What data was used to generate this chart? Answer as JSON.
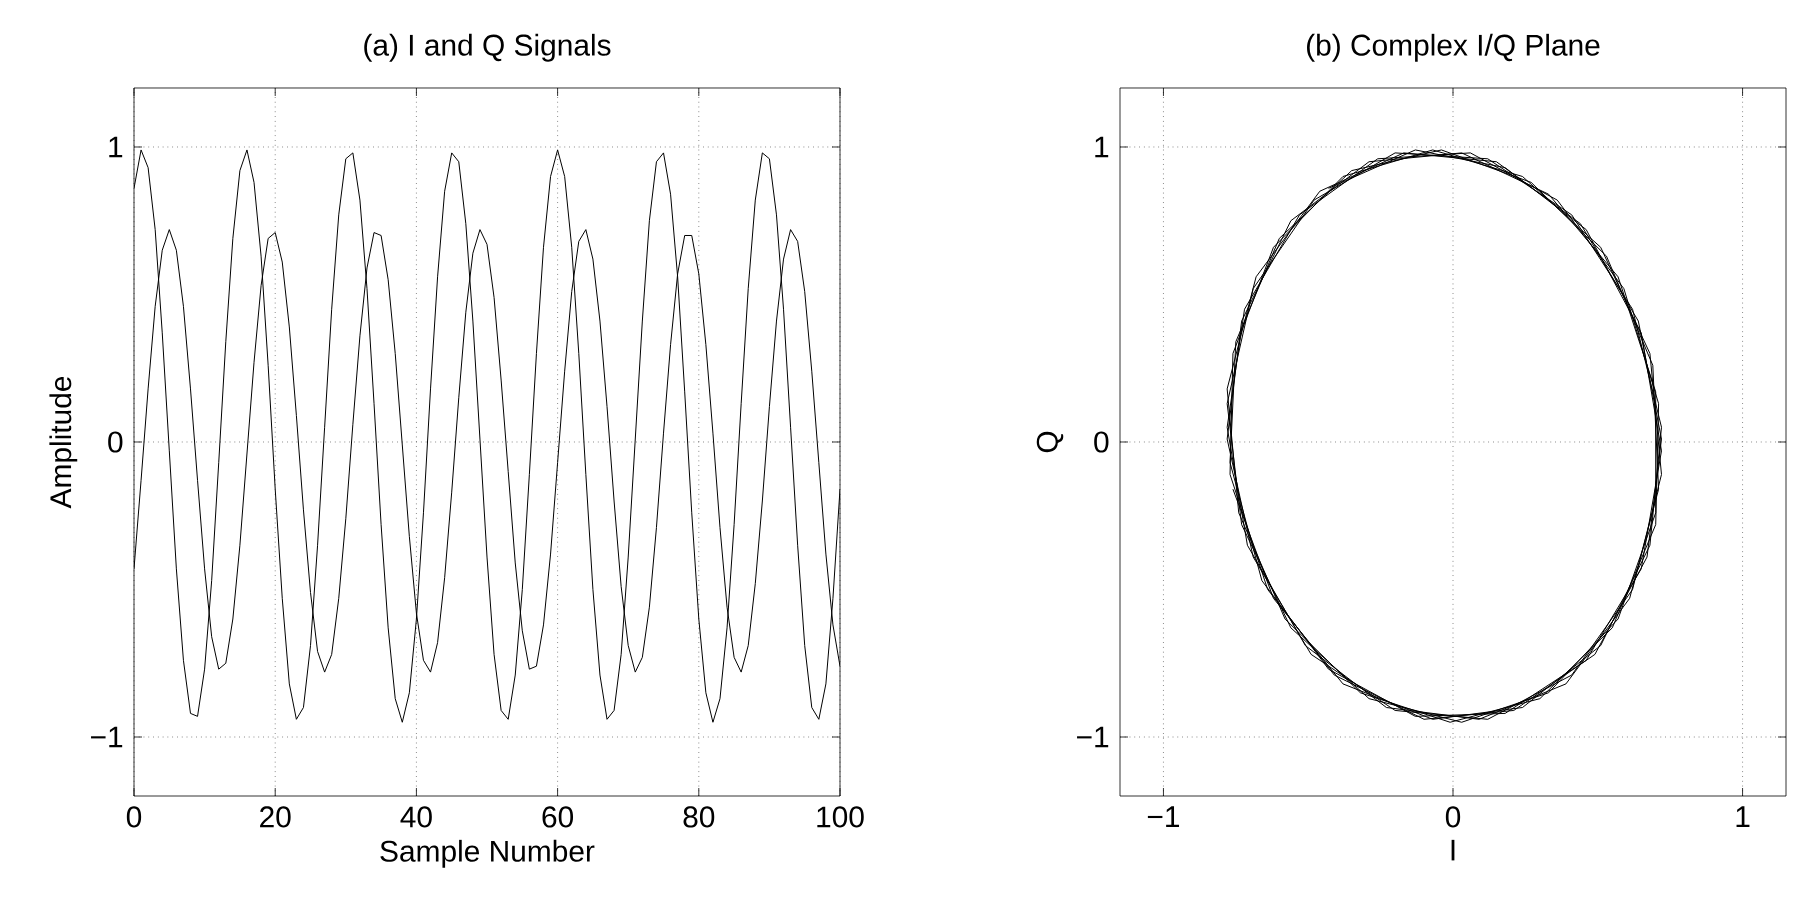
{
  "chart_data": [
    {
      "type": "line",
      "title": "(a) I and Q Signals",
      "xlabel": "Sample Number",
      "ylabel": "Amplitude",
      "x": [
        0,
        1,
        2,
        3,
        4,
        5,
        6,
        7,
        8,
        9,
        10,
        11,
        12,
        13,
        14,
        15,
        16,
        17,
        18,
        19,
        20,
        21,
        22,
        23,
        24,
        25,
        26,
        27,
        28,
        29,
        30,
        31,
        32,
        33,
        34,
        35,
        36,
        37,
        38,
        39,
        40,
        41,
        42,
        43,
        44,
        45,
        46,
        47,
        48,
        49,
        50,
        51,
        52,
        53,
        54,
        55,
        56,
        57,
        58,
        59,
        60,
        61,
        62,
        63,
        64,
        65,
        66,
        67,
        68,
        69,
        70,
        71,
        72,
        73,
        74,
        75,
        76,
        77,
        78,
        79,
        80,
        81,
        82,
        83,
        84,
        85,
        86,
        87,
        88,
        89,
        90,
        91,
        92,
        93,
        94,
        95,
        96,
        97,
        98,
        99,
        100
      ],
      "series": [
        {
          "color": "#000000",
          "values": [
            0.86,
            0.99,
            0.93,
            0.72,
            0.37,
            -0.03,
            -0.43,
            -0.74,
            -0.92,
            -0.93,
            -0.77,
            -0.47,
            -0.07,
            0.34,
            0.69,
            0.92,
            0.99,
            0.88,
            0.63,
            0.26,
            -0.16,
            -0.53,
            -0.82,
            -0.94,
            -0.9,
            -0.69,
            -0.35,
            0.05,
            0.45,
            0.77,
            0.96,
            0.98,
            0.82,
            0.52,
            0.13,
            -0.28,
            -0.63,
            -0.87,
            -0.95,
            -0.85,
            -0.6,
            -0.24,
            0.18,
            0.56,
            0.85,
            0.98,
            0.95,
            0.74,
            0.41,
            0.01,
            -0.39,
            -0.72,
            -0.91,
            -0.94,
            -0.79,
            -0.5,
            -0.11,
            0.3,
            0.66,
            0.9,
            0.99,
            0.9,
            0.66,
            0.3,
            -0.11,
            -0.5,
            -0.79,
            -0.94,
            -0.91,
            -0.72,
            -0.39,
            0.01,
            0.41,
            0.75,
            0.95,
            0.98,
            0.84,
            0.56,
            0.17,
            -0.24,
            -0.6,
            -0.85,
            -0.95,
            -0.87,
            -0.63,
            -0.28,
            0.13,
            0.52,
            0.82,
            0.98,
            0.96,
            0.77,
            0.45,
            0.05,
            -0.35,
            -0.69,
            -0.9,
            -0.94,
            -0.82,
            -0.53,
            -0.16
          ]
        },
        {
          "color": "#000000",
          "values": [
            -0.43,
            -0.13,
            0.18,
            0.46,
            0.65,
            0.72,
            0.65,
            0.46,
            0.18,
            -0.13,
            -0.43,
            -0.66,
            -0.77,
            -0.75,
            -0.6,
            -0.35,
            -0.04,
            0.27,
            0.53,
            0.69,
            0.71,
            0.61,
            0.39,
            0.09,
            -0.23,
            -0.51,
            -0.71,
            -0.78,
            -0.72,
            -0.53,
            -0.26,
            0.06,
            0.36,
            0.59,
            0.71,
            0.7,
            0.55,
            0.3,
            -0.01,
            -0.32,
            -0.58,
            -0.74,
            -0.78,
            -0.68,
            -0.46,
            -0.17,
            0.15,
            0.44,
            0.64,
            0.72,
            0.67,
            0.49,
            0.21,
            -0.1,
            -0.41,
            -0.64,
            -0.77,
            -0.76,
            -0.62,
            -0.38,
            -0.07,
            0.24,
            0.51,
            0.68,
            0.72,
            0.62,
            0.41,
            0.12,
            -0.2,
            -0.49,
            -0.69,
            -0.78,
            -0.73,
            -0.56,
            -0.29,
            0.03,
            0.33,
            0.57,
            0.7,
            0.7,
            0.57,
            0.33,
            0.03,
            -0.29,
            -0.56,
            -0.73,
            -0.78,
            -0.69,
            -0.48,
            -0.2,
            0.12,
            0.41,
            0.62,
            0.72,
            0.68,
            0.51,
            0.24,
            -0.07,
            -0.38,
            -0.62,
            -0.76
          ]
        }
      ],
      "xlim": [
        0,
        100
      ],
      "ylim": [
        -1.2,
        1.2
      ],
      "xticks": [
        0,
        20,
        40,
        60,
        80,
        100
      ],
      "yticks": [
        {
          "value": -1,
          "label": "−1"
        },
        0,
        1
      ],
      "grid": true,
      "line_style": "solid"
    },
    {
      "type": "line",
      "title": "(b) Complex I/Q Plane",
      "xlabel": "I",
      "ylabel": "Q",
      "series": [
        {
          "color": "#000000",
          "x": [
            -0.43,
            -0.13,
            0.18,
            0.46,
            0.65,
            0.72,
            0.65,
            0.46,
            0.18,
            -0.13,
            -0.43,
            -0.66,
            -0.77,
            -0.75,
            -0.6,
            -0.35,
            -0.04,
            0.27,
            0.53,
            0.69,
            0.71,
            0.61,
            0.39,
            0.09,
            -0.23,
            -0.51,
            -0.71,
            -0.78,
            -0.72,
            -0.53,
            -0.26,
            0.06,
            0.36,
            0.59,
            0.71,
            0.7,
            0.55,
            0.3,
            -0.01,
            -0.32,
            -0.58,
            -0.74,
            -0.78,
            -0.68,
            -0.46,
            -0.17,
            0.15,
            0.44,
            0.64,
            0.72,
            0.67,
            0.49,
            0.21,
            -0.1,
            -0.41,
            -0.64,
            -0.77,
            -0.76,
            -0.62,
            -0.38,
            -0.07,
            0.24,
            0.51,
            0.68,
            0.72,
            0.62,
            0.41,
            0.12,
            -0.2,
            -0.49,
            -0.69,
            -0.78,
            -0.73,
            -0.56,
            -0.29,
            0.03,
            0.33,
            0.57,
            0.7,
            0.7,
            0.57,
            0.33,
            0.03,
            -0.29,
            -0.56,
            -0.73,
            -0.78,
            -0.69,
            -0.48,
            -0.2,
            0.12,
            0.41,
            0.62,
            0.72,
            0.68,
            0.51,
            0.24,
            -0.07,
            -0.38,
            -0.62,
            -0.76
          ],
          "values": [
            0.86,
            0.99,
            0.93,
            0.72,
            0.37,
            -0.03,
            -0.43,
            -0.74,
            -0.92,
            -0.93,
            -0.77,
            -0.47,
            -0.07,
            0.34,
            0.69,
            0.92,
            0.99,
            0.88,
            0.63,
            0.26,
            -0.16,
            -0.53,
            -0.82,
            -0.94,
            -0.9,
            -0.69,
            -0.35,
            0.05,
            0.45,
            0.77,
            0.96,
            0.98,
            0.82,
            0.52,
            0.13,
            -0.28,
            -0.63,
            -0.87,
            -0.95,
            -0.85,
            -0.6,
            -0.24,
            0.18,
            0.56,
            0.85,
            0.98,
            0.95,
            0.74,
            0.41,
            0.01,
            -0.39,
            -0.72,
            -0.91,
            -0.94,
            -0.79,
            -0.5,
            -0.11,
            0.3,
            0.66,
            0.9,
            0.99,
            0.9,
            0.66,
            0.3,
            -0.11,
            -0.5,
            -0.79,
            -0.94,
            -0.91,
            -0.72,
            -0.39,
            0.01,
            0.41,
            0.75,
            0.95,
            0.98,
            0.84,
            0.56,
            0.17,
            -0.24,
            -0.6,
            -0.85,
            -0.95,
            -0.87,
            -0.63,
            -0.28,
            0.13,
            0.52,
            0.82,
            0.98,
            0.96,
            0.77,
            0.45,
            0.05,
            -0.35,
            -0.69,
            -0.9,
            -0.94,
            -0.82,
            -0.53,
            -0.16
          ]
        }
      ],
      "xlim": [
        -1.15,
        1.15
      ],
      "ylim": [
        -1.2,
        1.2
      ],
      "xticks": [
        {
          "value": -1,
          "label": "−1"
        },
        0,
        1
      ],
      "yticks": [
        {
          "value": -1,
          "label": "−1"
        },
        0,
        1
      ],
      "grid": true,
      "line_style": "solid"
    }
  ]
}
